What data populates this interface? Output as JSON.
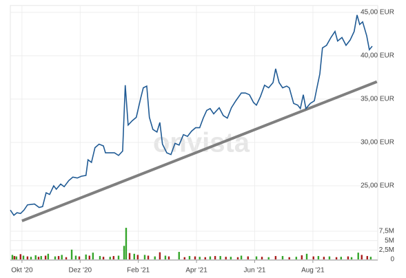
{
  "chart_data": [
    {
      "type": "line",
      "watermark": "onvista",
      "grid": true,
      "color": "#1f5a94",
      "xlim": [
        -0.4,
        12.23
      ],
      "ylim": [
        20.5,
        45.8
      ],
      "yticks": [
        {
          "value": 25,
          "label": "25,00 EUR"
        },
        {
          "value": 30,
          "label": "30,00 EUR"
        },
        {
          "value": 35,
          "label": "35,00 EUR"
        },
        {
          "value": 40,
          "label": "40,00 EUR"
        },
        {
          "value": 45,
          "label": "45,00 EUR"
        }
      ],
      "x": [
        -0.4,
        -0.28,
        -0.17,
        -0.05,
        0.07,
        0.19,
        0.43,
        0.59,
        0.71,
        0.83,
        0.95,
        1.09,
        1.18,
        1.33,
        1.45,
        1.61,
        1.75,
        1.9,
        2.04,
        2.2,
        2.27,
        2.39,
        2.51,
        2.65,
        2.8,
        2.87,
        3.03,
        3.18,
        3.32,
        3.46,
        3.55,
        3.65,
        3.79,
        3.93,
        4.08,
        4.17,
        4.29,
        4.38,
        4.5,
        4.64,
        4.74,
        4.83,
        4.98,
        5.12,
        5.26,
        5.4,
        5.55,
        5.69,
        5.83,
        5.97,
        6.11,
        6.23,
        6.35,
        6.47,
        6.59,
        6.78,
        6.92,
        7.06,
        7.2,
        7.35,
        7.54,
        7.68,
        7.82,
        7.96,
        8.06,
        8.2,
        8.34,
        8.48,
        8.63,
        8.72,
        8.84,
        8.96,
        9.1,
        9.19,
        9.34,
        9.48,
        9.57,
        9.67,
        9.76,
        9.91,
        10.05,
        10.14,
        10.24,
        10.33,
        10.47,
        10.62,
        10.76,
        10.85,
        11.0,
        11.14,
        11.28,
        11.42,
        11.52,
        11.61,
        11.71,
        11.85,
        11.94,
        12.04
      ],
      "values": [
        22.2,
        21.6,
        21.9,
        21.8,
        22.2,
        22.8,
        22.9,
        22.5,
        22.6,
        24.2,
        24.0,
        25.0,
        24.6,
        25.2,
        24.9,
        25.6,
        26.0,
        25.9,
        26.1,
        26.2,
        28.0,
        27.7,
        29.4,
        29.8,
        29.6,
        28.8,
        28.8,
        28.8,
        28.5,
        29.0,
        36.6,
        32.0,
        32.5,
        32.9,
        35.1,
        36.3,
        36.5,
        32.9,
        31.5,
        31.2,
        32.3,
        29.8,
        28.8,
        28.6,
        29.9,
        29.7,
        30.9,
        30.7,
        31.3,
        31.7,
        31.7,
        32.8,
        33.7,
        33.9,
        33.3,
        34.0,
        33.1,
        32.8,
        34.0,
        34.8,
        35.7,
        35.7,
        35.5,
        34.6,
        34.3,
        35.3,
        36.6,
        36.3,
        36.9,
        38.5,
        36.9,
        36.3,
        36.5,
        36.3,
        34.5,
        34.3,
        33.9,
        35.5,
        33.9,
        34.5,
        34.8,
        36.3,
        37.9,
        40.9,
        41.2,
        42.1,
        42.8,
        41.7,
        42.1,
        41.2,
        41.8,
        42.8,
        44.7,
        43.6,
        43.9,
        42.3,
        40.7,
        41.1
      ],
      "trendline": {
        "color": "#7f7f7f",
        "x": [
          0,
          12.2
        ],
        "values": [
          20.95,
          37.0
        ]
      }
    },
    {
      "type": "bar",
      "grid": true,
      "xlim": [
        -0.4,
        12.23
      ],
      "ylim": [
        0,
        9
      ],
      "xticks": [
        {
          "value": 0,
          "label": "Okt '20"
        },
        {
          "value": 2,
          "label": "Dez '20"
        },
        {
          "value": 4,
          "label": "Feb '21"
        },
        {
          "value": 6,
          "label": "Apr '21"
        },
        {
          "value": 8,
          "label": "Jun '21"
        },
        {
          "value": 10,
          "label": "Aug '21"
        }
      ],
      "yticks": [
        0,
        {
          "value": 2.5,
          "label": "2,5M"
        },
        {
          "value": 5,
          "label": "5M"
        },
        {
          "value": 7.5,
          "label": "7,5M"
        }
      ],
      "series": [
        {
          "color": "#34a52a",
          "x": [
            -0.33,
            -0.19,
            0.05,
            0.31,
            0.47,
            0.66,
            0.9,
            1.14,
            1.37,
            1.71,
            1.85,
            2.2,
            2.44,
            2.68,
            3.03,
            3.32,
            3.51,
            3.58,
            3.86,
            4.22,
            4.57,
            4.93,
            5.4,
            5.76,
            6.11,
            6.47,
            6.82,
            7.18,
            7.54,
            8.06,
            8.48,
            8.96,
            9.43,
            9.79,
            10.19,
            10.57,
            10.97,
            11.33,
            11.56,
            11.99
          ],
          "values": [
            1.2,
            0.8,
            1.0,
            0.7,
            1.1,
            0.9,
            1.5,
            0.8,
            1.2,
            2.6,
            1.0,
            1.3,
            1.8,
            0.9,
            0.7,
            1.0,
            3.6,
            8.4,
            1.5,
            1.2,
            0.8,
            1.0,
            2.0,
            0.9,
            0.7,
            0.8,
            0.9,
            0.7,
            1.0,
            0.8,
            0.6,
            0.9,
            0.7,
            1.5,
            0.9,
            0.8,
            0.7,
            0.6,
            1.8,
            0.7
          ]
        },
        {
          "color": "#a81c1c",
          "x": [
            -0.26,
            -0.05,
            0.19,
            0.57,
            0.81,
            1.26,
            1.52,
            1.97,
            2.32,
            2.8,
            3.15,
            3.7,
            3.98,
            4.34,
            4.74,
            5.05,
            5.59,
            5.95,
            6.3,
            6.64,
            7.01,
            7.42,
            7.77,
            8.25,
            8.72,
            9.19,
            9.62,
            10.02,
            10.38,
            10.81,
            11.21,
            11.68,
            11.87
          ],
          "values": [
            0.9,
            1.4,
            0.8,
            0.7,
            1.0,
            0.9,
            0.6,
            0.8,
            1.0,
            0.7,
            0.9,
            1.7,
            1.2,
            1.0,
            1.9,
            0.8,
            0.6,
            0.8,
            0.6,
            0.9,
            0.7,
            0.6,
            0.8,
            0.7,
            0.9,
            0.6,
            1.1,
            0.8,
            0.7,
            0.6,
            0.8,
            1.2,
            0.9
          ]
        }
      ]
    }
  ]
}
